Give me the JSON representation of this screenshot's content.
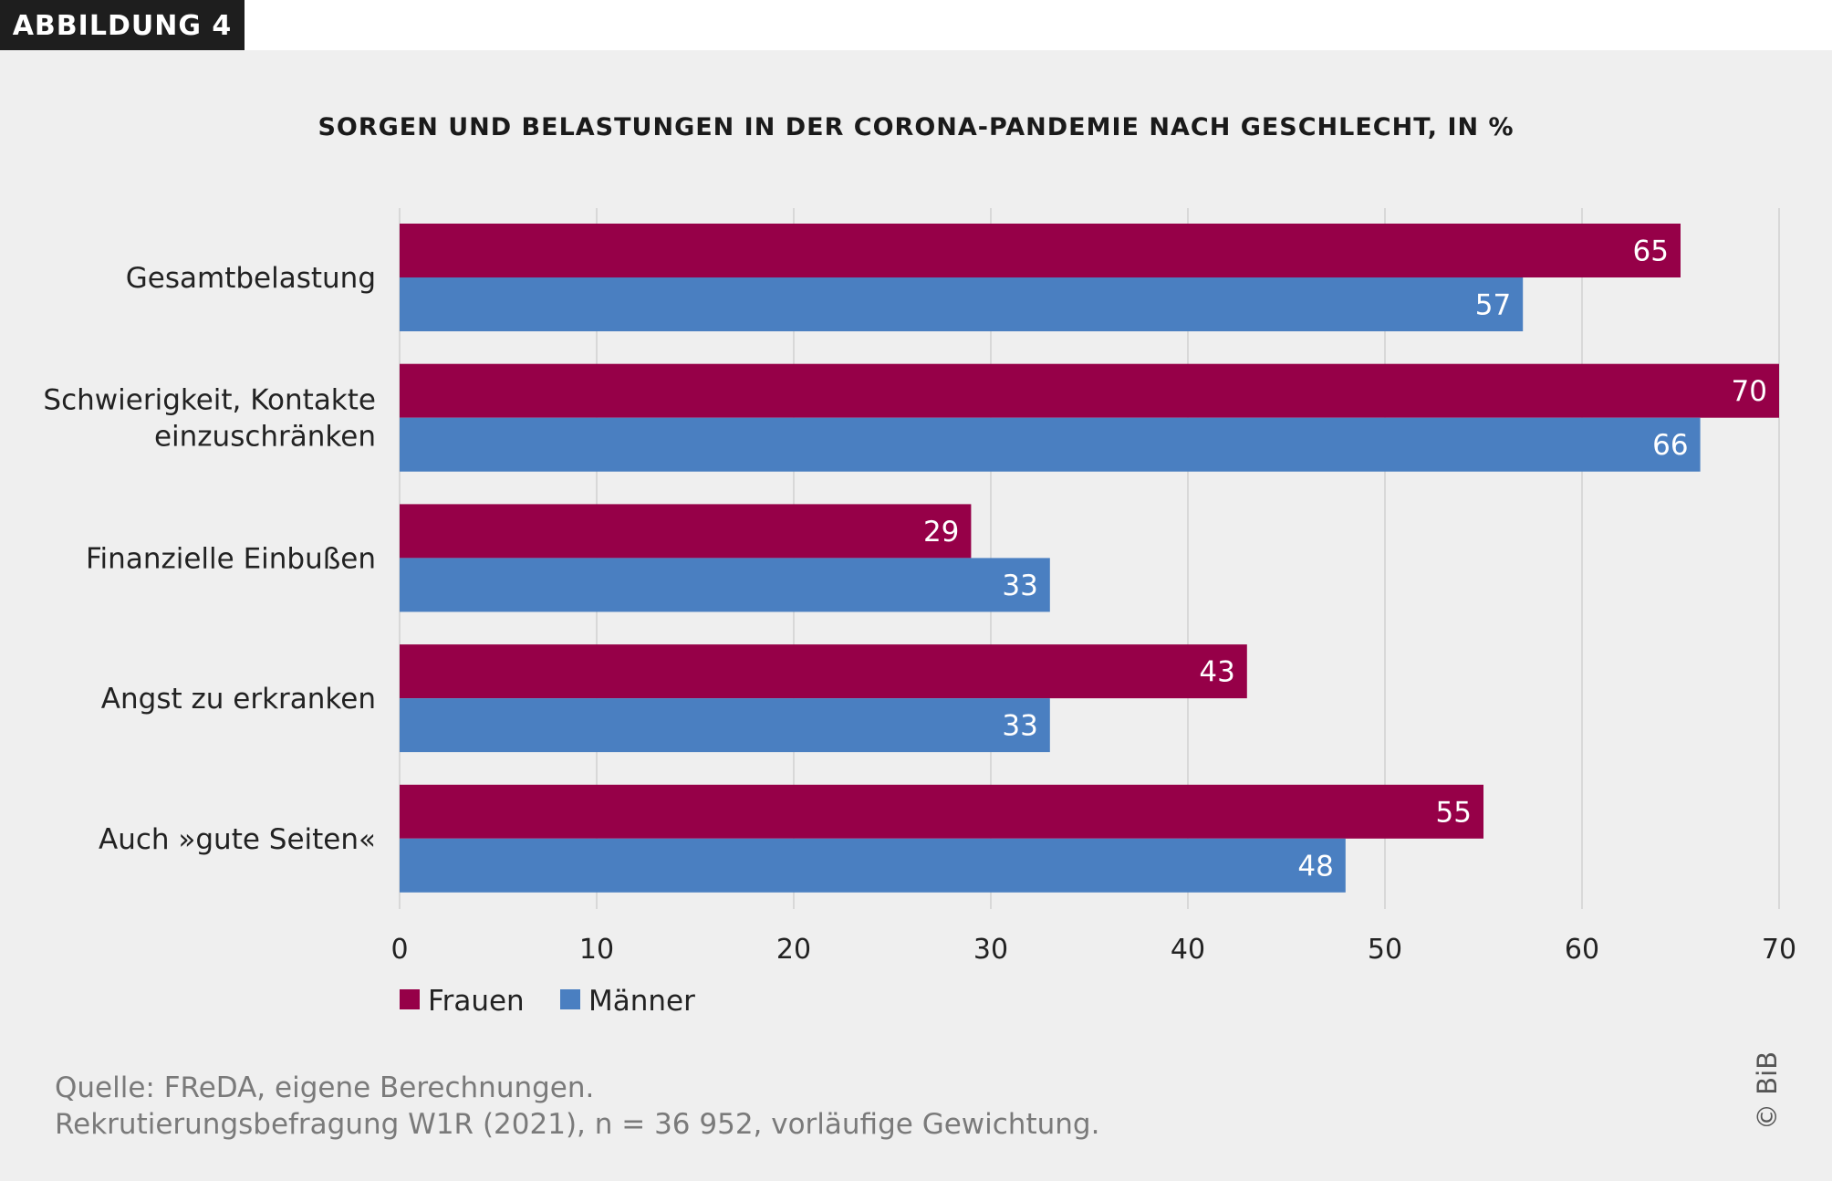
{
  "figure_label": "ABBILDUNG 4",
  "chart_data": {
    "type": "bar",
    "orientation": "horizontal",
    "title": "SORGEN UND BELASTUNGEN IN DER CORONA-PANDEMIE NACH GESCHLECHT, IN %",
    "categories": [
      "Gesamtbelastung",
      "Schwierigkeit, Kontakte\neinzuschränken",
      "Finanzielle Einbußen",
      "Angst zu erkranken",
      "Auch »gute Seiten«"
    ],
    "series": [
      {
        "name": "Frauen",
        "color": "#960048",
        "values": [
          65,
          70,
          29,
          43,
          55
        ]
      },
      {
        "name": "Männer",
        "color": "#4a7fc1",
        "values": [
          57,
          66,
          33,
          33,
          48
        ]
      }
    ],
    "xlim": [
      0,
      70
    ],
    "xticks": [
      0,
      10,
      20,
      30,
      40,
      50,
      60,
      70
    ],
    "grid": true,
    "legend": "bottom-left",
    "data_labels": true
  },
  "source_lines": [
    "Quelle: FReDA, eigene Berechnungen.",
    "Rekrutierungsbefragung W1R (2021), n = 36 952, vorläufige Gewichtung."
  ],
  "copyright": "© BiB"
}
